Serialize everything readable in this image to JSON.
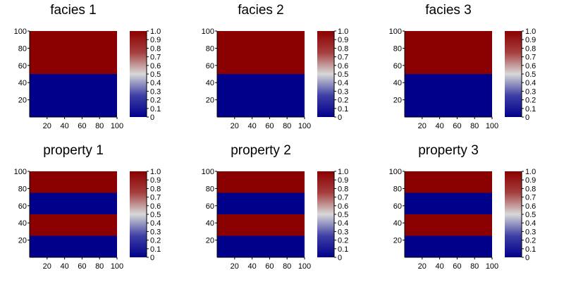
{
  "colormap": {
    "name": "seismic",
    "stops": [
      {
        "v": 0.0,
        "color": "#00008b"
      },
      {
        "v": 0.25,
        "color": "#3f3fa6"
      },
      {
        "v": 0.5,
        "color": "#d8d8d8"
      },
      {
        "v": 0.75,
        "color": "#a63f3f"
      },
      {
        "v": 1.0,
        "color": "#8b0000"
      }
    ]
  },
  "chart_data": [
    {
      "type": "heatmap",
      "title": "facies 1",
      "xlim": [
        0,
        100
      ],
      "ylim": [
        0,
        100
      ],
      "xticks": [
        20,
        40,
        60,
        80,
        100
      ],
      "yticks": [
        20,
        40,
        60,
        80,
        100
      ],
      "bands": [
        {
          "y0": 0,
          "y1": 50,
          "value": 0
        },
        {
          "y0": 50,
          "y1": 100,
          "value": 1
        }
      ],
      "colorbar": {
        "range": [
          0,
          1
        ],
        "ticks": [
          "0",
          "0.1",
          "0.2",
          "0.3",
          "0.4",
          "0.5",
          "0.6",
          "0.7",
          "0.8",
          "0.9",
          "1.0"
        ]
      }
    },
    {
      "type": "heatmap",
      "title": "facies 2",
      "xlim": [
        0,
        100
      ],
      "ylim": [
        0,
        100
      ],
      "xticks": [
        20,
        40,
        60,
        80,
        100
      ],
      "yticks": [
        20,
        40,
        60,
        80,
        100
      ],
      "bands": [
        {
          "y0": 0,
          "y1": 50,
          "value": 0
        },
        {
          "y0": 50,
          "y1": 100,
          "value": 1
        }
      ],
      "colorbar": {
        "range": [
          0,
          1
        ],
        "ticks": [
          "0",
          "0.1",
          "0.2",
          "0.3",
          "0.4",
          "0.5",
          "0.6",
          "0.7",
          "0.8",
          "0.9",
          "1.0"
        ]
      }
    },
    {
      "type": "heatmap",
      "title": "facies 3",
      "xlim": [
        0,
        100
      ],
      "ylim": [
        0,
        100
      ],
      "xticks": [
        20,
        40,
        60,
        80,
        100
      ],
      "yticks": [
        20,
        40,
        60,
        80,
        100
      ],
      "bands": [
        {
          "y0": 0,
          "y1": 50,
          "value": 0
        },
        {
          "y0": 50,
          "y1": 100,
          "value": 1
        }
      ],
      "colorbar": {
        "range": [
          0,
          1
        ],
        "ticks": [
          "0",
          "0.1",
          "0.2",
          "0.3",
          "0.4",
          "0.5",
          "0.6",
          "0.7",
          "0.8",
          "0.9",
          "1.0"
        ]
      }
    },
    {
      "type": "heatmap",
      "title": "property 1",
      "xlim": [
        0,
        100
      ],
      "ylim": [
        0,
        100
      ],
      "xticks": [
        20,
        40,
        60,
        80,
        100
      ],
      "yticks": [
        20,
        40,
        60,
        80,
        100
      ],
      "bands": [
        {
          "y0": 0,
          "y1": 25,
          "value": 0
        },
        {
          "y0": 25,
          "y1": 50,
          "value": 1
        },
        {
          "y0": 50,
          "y1": 75,
          "value": 0
        },
        {
          "y0": 75,
          "y1": 100,
          "value": 1
        }
      ],
      "colorbar": {
        "range": [
          0,
          1
        ],
        "ticks": [
          "0",
          "0.1",
          "0.2",
          "0.3",
          "0.4",
          "0.5",
          "0.6",
          "0.7",
          "0.8",
          "0.9",
          "1.0"
        ]
      }
    },
    {
      "type": "heatmap",
      "title": "property 2",
      "xlim": [
        0,
        100
      ],
      "ylim": [
        0,
        100
      ],
      "xticks": [
        20,
        40,
        60,
        80,
        100
      ],
      "yticks": [
        20,
        40,
        60,
        80,
        100
      ],
      "bands": [
        {
          "y0": 0,
          "y1": 25,
          "value": 0
        },
        {
          "y0": 25,
          "y1": 50,
          "value": 1
        },
        {
          "y0": 50,
          "y1": 75,
          "value": 0
        },
        {
          "y0": 75,
          "y1": 100,
          "value": 1
        }
      ],
      "colorbar": {
        "range": [
          0,
          1
        ],
        "ticks": [
          "0",
          "0.1",
          "0.2",
          "0.3",
          "0.4",
          "0.5",
          "0.6",
          "0.7",
          "0.8",
          "0.9",
          "1.0"
        ]
      }
    },
    {
      "type": "heatmap",
      "title": "property 3",
      "xlim": [
        0,
        100
      ],
      "ylim": [
        0,
        100
      ],
      "xticks": [
        20,
        40,
        60,
        80,
        100
      ],
      "yticks": [
        20,
        40,
        60,
        80,
        100
      ],
      "bands": [
        {
          "y0": 0,
          "y1": 25,
          "value": 0
        },
        {
          "y0": 25,
          "y1": 50,
          "value": 1
        },
        {
          "y0": 50,
          "y1": 75,
          "value": 0
        },
        {
          "y0": 75,
          "y1": 100,
          "value": 1
        }
      ],
      "colorbar": {
        "range": [
          0,
          1
        ],
        "ticks": [
          "0",
          "0.1",
          "0.2",
          "0.3",
          "0.4",
          "0.5",
          "0.6",
          "0.7",
          "0.8",
          "0.9",
          "1.0"
        ]
      }
    }
  ]
}
